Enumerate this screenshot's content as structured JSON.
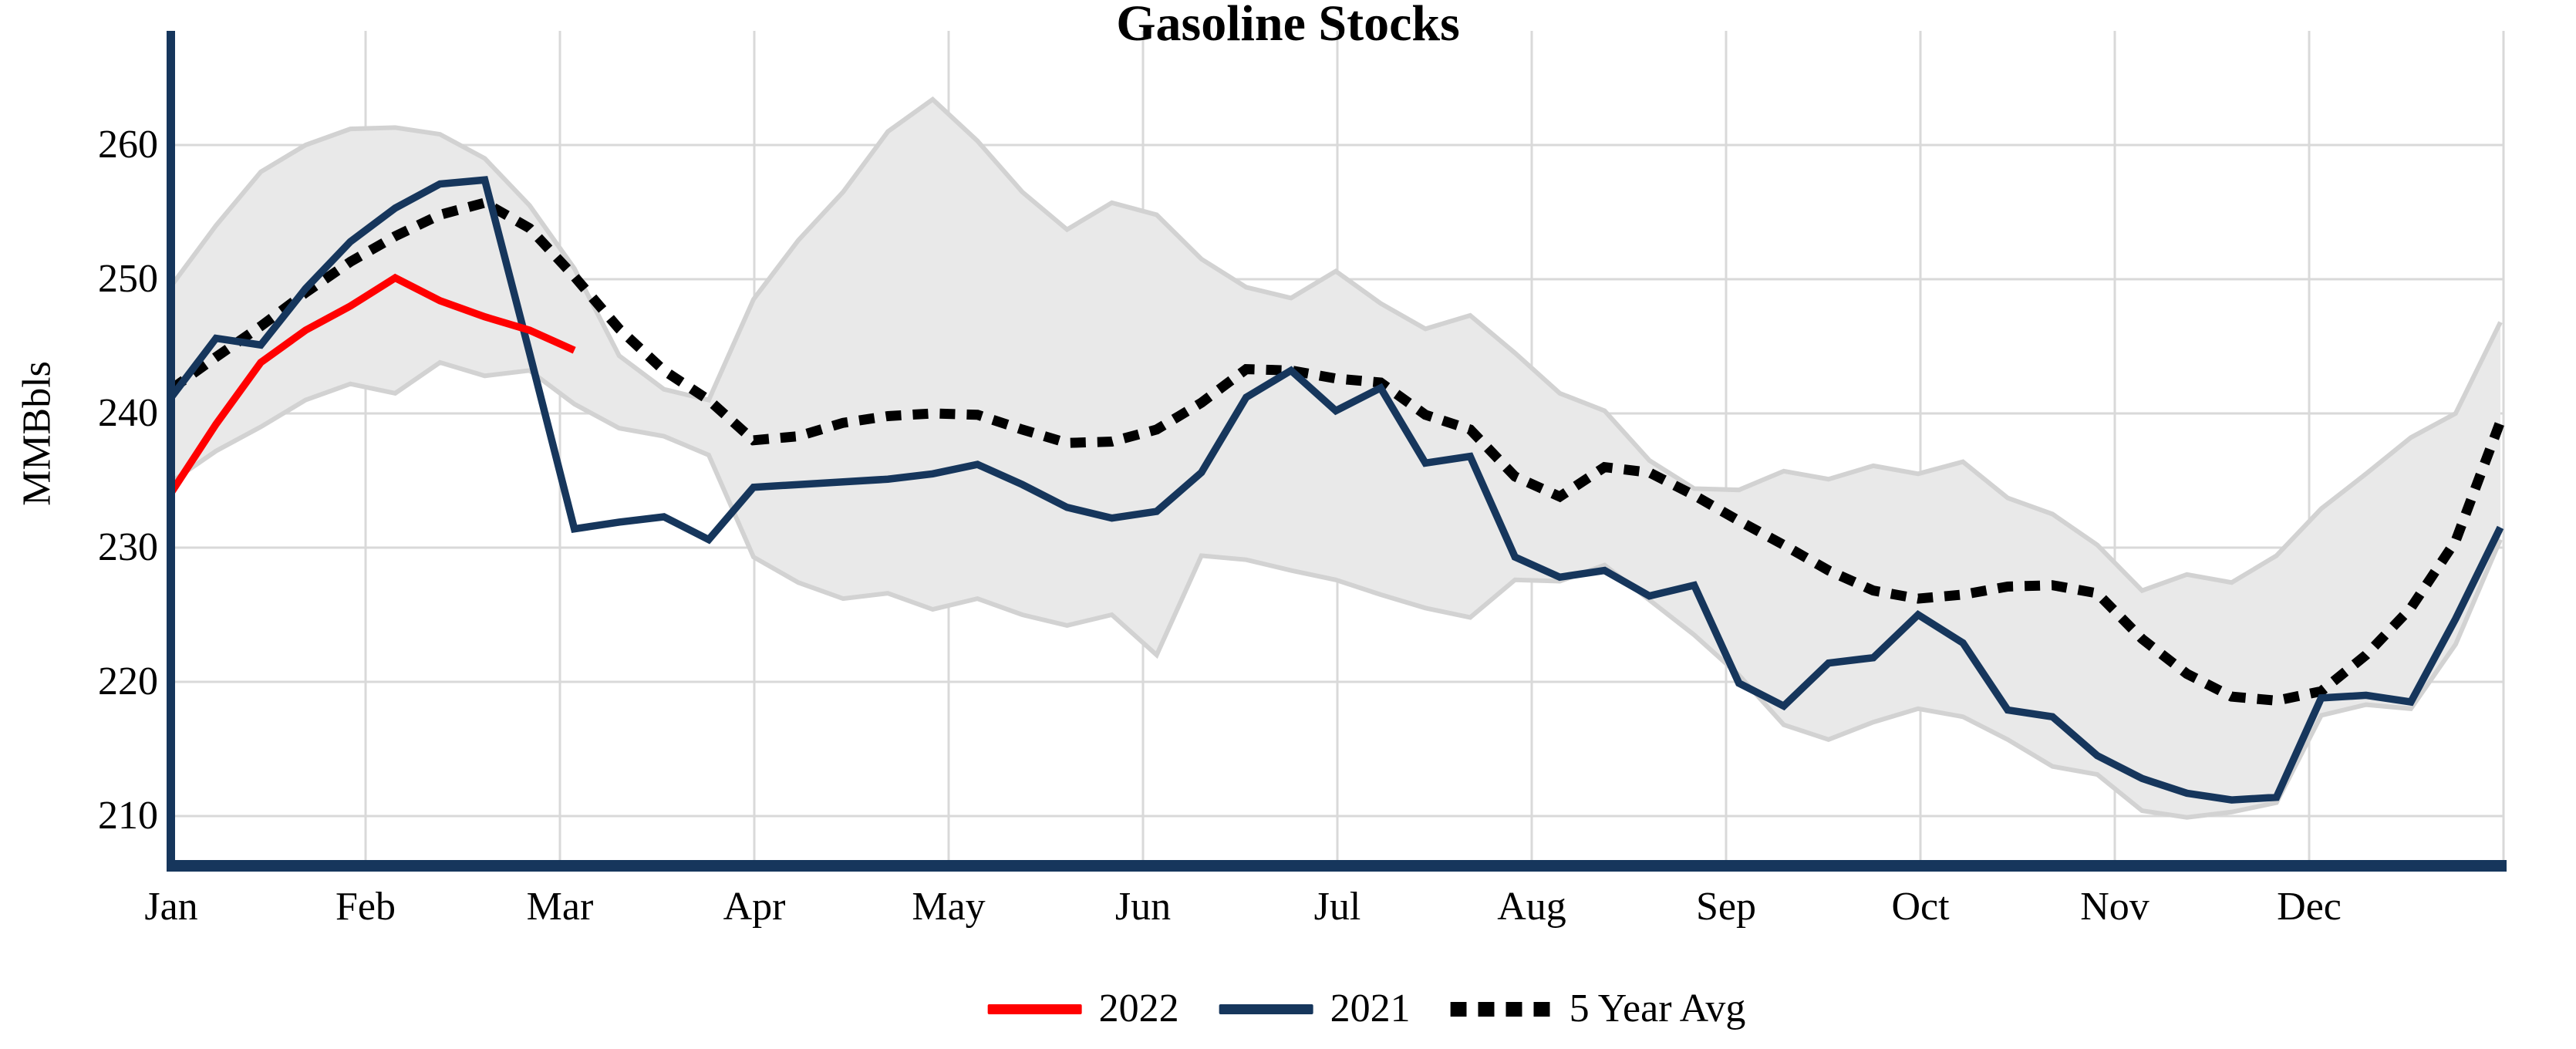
{
  "title": "Gasoline Stocks",
  "y_axis": {
    "label": "MMBbls",
    "ticks": [
      "260",
      "250",
      "240",
      "230",
      "220",
      "210"
    ]
  },
  "x_axis": {
    "months": [
      "Jan",
      "Feb",
      "Mar",
      "Apr",
      "May",
      "Jun",
      "Jul",
      "Aug",
      "Sep",
      "Oct",
      "Nov",
      "Dec"
    ]
  },
  "legend": [
    {
      "label": "2022",
      "style": "solid",
      "color": "#ff0000"
    },
    {
      "label": "2021",
      "style": "solid",
      "color": "#16365c"
    },
    {
      "label": "5 Year Avg",
      "style": "dotted",
      "color": "#000000"
    }
  ],
  "colors": {
    "red_2022": "#ff0000",
    "navy_2021": "#16365c",
    "avg_black": "#000000",
    "band_fill": "#e9e9e9",
    "band_edge": "#d2d2d2",
    "grid": "#d9d9d9",
    "axis_spine": "#16365c",
    "background": "#ffffff"
  },
  "chart_data": {
    "type": "line",
    "title": "Gasoline Stocks",
    "xlabel": "",
    "ylabel": "MMBbls",
    "x_unit": "week-of-year",
    "x": [
      1,
      2,
      3,
      4,
      5,
      6,
      7,
      8,
      9,
      10,
      11,
      12,
      13,
      14,
      15,
      16,
      17,
      18,
      19,
      20,
      21,
      22,
      23,
      24,
      25,
      26,
      27,
      28,
      29,
      30,
      31,
      32,
      33,
      34,
      35,
      36,
      37,
      38,
      39,
      40,
      41,
      42,
      43,
      44,
      45,
      46,
      47,
      48,
      49,
      50,
      51,
      52,
      53
    ],
    "month_tick_weeks": [
      1,
      5.33,
      9.67,
      14,
      18.33,
      22.67,
      27,
      31.33,
      35.67,
      40,
      44.33,
      48.67
    ],
    "y_ticks": [
      260,
      250,
      240,
      230,
      220,
      210
    ],
    "ylim": [
      206.5,
      268.5
    ],
    "grid": true,
    "legend_position": "bottom",
    "band": {
      "name": "5 Year Range",
      "fill": "#e9e9e9",
      "edge": "#d2d2d2"
    },
    "series": [
      {
        "name": "2022",
        "color": "#ff0000",
        "width": 9.5,
        "dash": "",
        "values": [
          234.1,
          239.2,
          243.8,
          246.2,
          248.0,
          250.1,
          248.4,
          247.2,
          246.2,
          244.7
        ]
      },
      {
        "name": "2021",
        "color": "#16365c",
        "width": 9.5,
        "dash": "",
        "values": [
          241.2,
          245.6,
          245.1,
          249.3,
          252.8,
          255.3,
          257.1,
          257.4,
          244.5,
          231.4,
          231.9,
          232.3,
          230.6,
          234.5,
          234.7,
          234.9,
          235.1,
          235.5,
          236.2,
          234.7,
          233.0,
          232.2,
          232.7,
          235.6,
          241.2,
          243.2,
          240.2,
          241.9,
          236.3,
          236.8,
          229.3,
          227.8,
          228.3,
          226.4,
          227.2,
          219.9,
          218.2,
          221.4,
          221.8,
          225.0,
          222.9,
          217.9,
          217.4,
          214.5,
          212.8,
          211.7,
          211.2,
          211.4,
          218.8,
          219.0,
          218.5,
          224.7,
          231.5
        ]
      },
      {
        "name": "5 Year Avg",
        "color": "#000000",
        "width": 13,
        "dash": "20 15",
        "values": [
          241.8,
          244.2,
          246.5,
          249.0,
          251.3,
          253.2,
          254.8,
          255.7,
          253.8,
          250.2,
          246.3,
          243.2,
          241.0,
          238.0,
          238.3,
          239.3,
          239.8,
          240.0,
          239.9,
          238.8,
          237.8,
          237.9,
          238.8,
          240.8,
          243.3,
          243.2,
          242.6,
          242.3,
          239.9,
          238.8,
          235.3,
          233.8,
          236.0,
          235.6,
          233.9,
          232.0,
          230.2,
          228.3,
          226.8,
          226.2,
          226.5,
          227.1,
          227.2,
          226.6,
          223.2,
          220.6,
          218.9,
          218.6,
          219.3,
          222.0,
          225.5,
          230.5,
          239.4
        ]
      },
      {
        "name": "5 Year Range Upper",
        "color": "#d2d2d2",
        "width": 6,
        "dash": "",
        "role": "band-upper",
        "values": [
          249.5,
          254.0,
          258.0,
          260.0,
          261.2,
          261.3,
          260.8,
          259.0,
          255.5,
          250.8,
          244.3,
          241.8,
          241.0,
          248.5,
          252.9,
          256.5,
          261.0,
          263.4,
          260.3,
          256.5,
          253.7,
          255.7,
          254.8,
          251.5,
          249.4,
          248.6,
          250.6,
          248.2,
          246.3,
          247.3,
          244.5,
          241.5,
          240.2,
          236.5,
          234.4,
          234.3,
          235.7,
          235.1,
          236.1,
          235.5,
          236.4,
          233.7,
          232.5,
          230.2,
          226.8,
          228.0,
          227.4,
          229.4,
          232.9,
          235.5,
          238.2,
          240.0,
          246.8
        ]
      },
      {
        "name": "5 Year Range Lower",
        "color": "#d2d2d2",
        "width": 6,
        "dash": "",
        "role": "band-lower",
        "values": [
          234.9,
          237.2,
          239.0,
          241.0,
          242.2,
          241.5,
          243.8,
          242.8,
          243.2,
          240.7,
          238.9,
          238.3,
          236.9,
          229.3,
          227.4,
          226.2,
          226.6,
          225.4,
          226.2,
          225.0,
          224.2,
          225.0,
          222.0,
          229.4,
          229.1,
          228.3,
          227.6,
          226.5,
          225.5,
          224.8,
          227.6,
          227.5,
          228.7,
          226.1,
          223.5,
          220.5,
          216.8,
          215.7,
          217.0,
          218.0,
          217.4,
          215.7,
          213.7,
          213.1,
          210.4,
          209.9,
          210.3,
          211.0,
          217.5,
          218.3,
          218.0,
          222.8,
          230.6
        ]
      }
    ]
  }
}
